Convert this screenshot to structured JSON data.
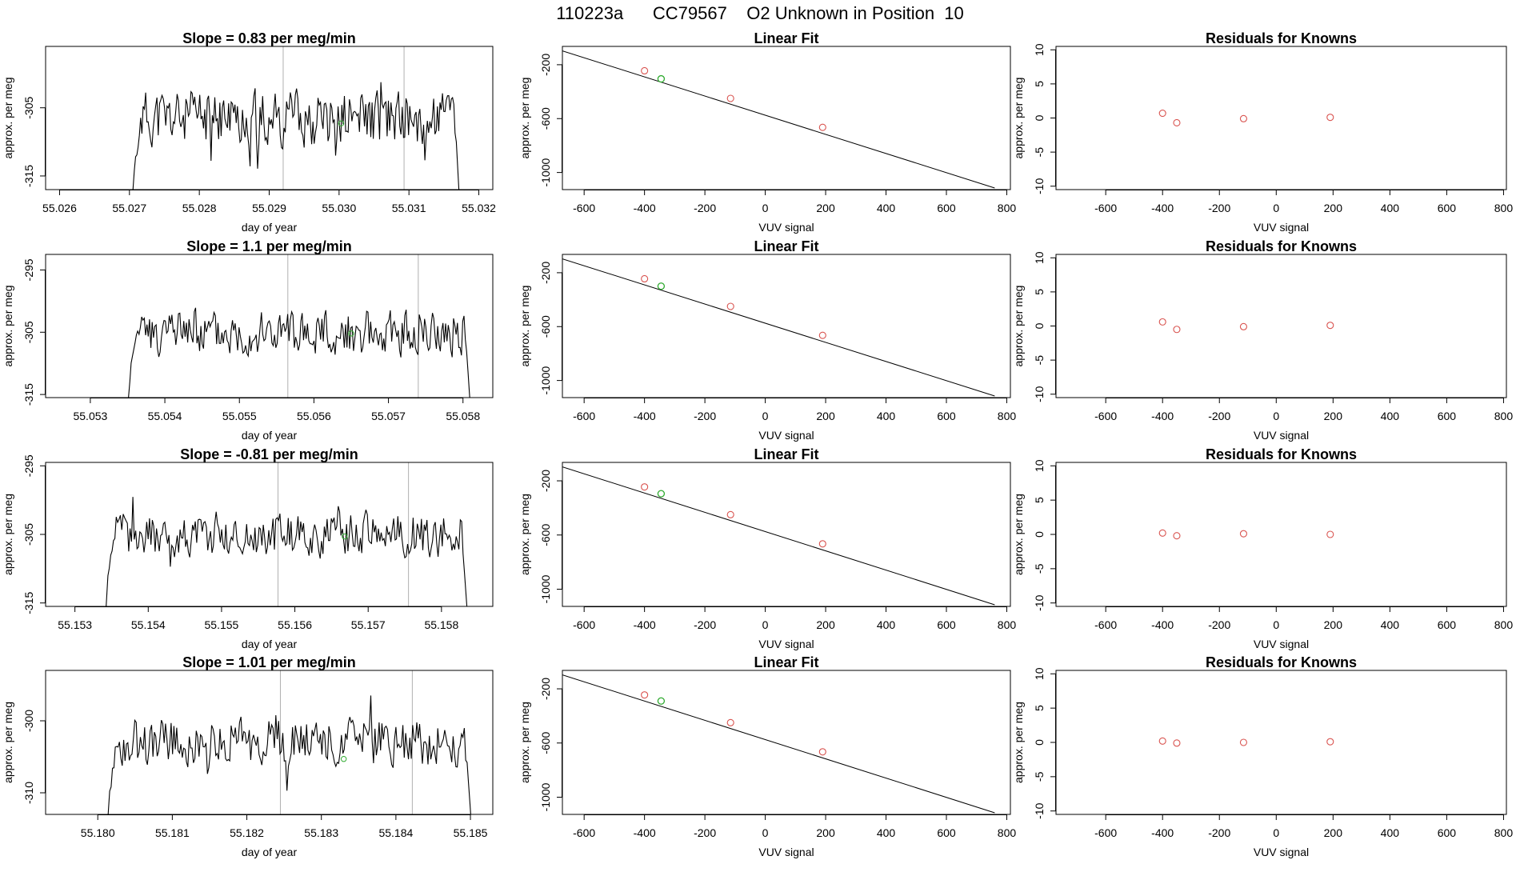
{
  "figure_title": "110223a      CC79567    O2 Unknown in Position  10",
  "chart_data": [
    {
      "type": "line",
      "row": 0,
      "col": 0,
      "title": "Slope =  0.83  per meg/min",
      "xlabel": "day of year",
      "ylabel": "approx. per meg",
      "xlim": [
        55.0258,
        55.0322
      ],
      "ylim": [
        -317,
        -296
      ],
      "xticks": [
        "55.026",
        "55.027",
        "55.028",
        "55.029",
        "55.030",
        "55.031",
        "55.032"
      ],
      "yticks": [
        "-305",
        "-315"
      ],
      "start": 55.02707,
      "end": 55.03175,
      "vlines": [
        55.0292,
        55.03093
      ],
      "center": -306.5,
      "amp": 5.0,
      "seed": 11,
      "marker": {
        "x": 55.03003,
        "y": -307.3
      }
    },
    {
      "type": "scatter",
      "row": 0,
      "col": 1,
      "title": "Linear Fit",
      "xlabel": "VUV signal",
      "ylabel": "approx. per meg",
      "xlim": [
        -672,
        812
      ],
      "ylim": [
        -1127,
        -64
      ],
      "xticks": [
        "-600",
        "-400",
        "-200",
        "0",
        "200",
        "400",
        "600",
        "800"
      ],
      "yticks": [
        "-200",
        "-600",
        "-1000"
      ],
      "fit_line": {
        "x": [
          -672,
          760
        ],
        "y": [
          -97,
          -1115
        ]
      },
      "knowns": {
        "x": [
          -400,
          -115,
          190
        ],
        "y": [
          -245,
          -450,
          -665
        ]
      },
      "unknown": {
        "x": [
          -345
        ],
        "y": [
          -305
        ]
      }
    },
    {
      "type": "scatter",
      "row": 0,
      "col": 2,
      "title": "Residuals for Knowns",
      "xlabel": "VUV signal",
      "ylabel": "approx. per meg",
      "xlim": [
        -775,
        810
      ],
      "ylim": [
        -10.5,
        10.5
      ],
      "xticks": [
        "-600",
        "-400",
        "-200",
        "0",
        "200",
        "400",
        "600",
        "800"
      ],
      "yticks": [
        "10",
        "5",
        "0",
        "-5",
        "-10"
      ],
      "knowns": {
        "x": [
          -400,
          -350,
          -115,
          190
        ],
        "y": [
          0.7,
          -0.7,
          -0.1,
          0.1
        ]
      }
    },
    {
      "type": "line",
      "row": 1,
      "col": 0,
      "title": "Slope =  1.1  per meg/min",
      "xlabel": "day of year",
      "ylabel": "approx. per meg",
      "xlim": [
        55.0524,
        55.0584
      ],
      "ylim": [
        -315.5,
        -292.5
      ],
      "xticks": [
        "55.053",
        "55.054",
        "55.055",
        "55.056",
        "55.057",
        "55.058"
      ],
      "yticks": [
        "-295",
        "-305",
        "-315"
      ],
      "start": 55.05353,
      "end": 55.05812,
      "vlines": [
        55.05565,
        55.0574
      ],
      "center": -305.0,
      "amp": 4.5,
      "seed": 23,
      "marker": {
        "x": 55.0565,
        "y": -305.2
      }
    },
    {
      "type": "scatter",
      "row": 1,
      "col": 1,
      "title": "Linear Fit",
      "xlabel": "VUV signal",
      "ylabel": "approx. per meg",
      "xlim": [
        -672,
        812
      ],
      "ylim": [
        -1127,
        -64
      ],
      "xticks": [
        "-600",
        "-400",
        "-200",
        "0",
        "200",
        "400",
        "600",
        "800"
      ],
      "yticks": [
        "-200",
        "-600",
        "-1000"
      ],
      "fit_line": {
        "x": [
          -672,
          760
        ],
        "y": [
          -97,
          -1115
        ]
      },
      "knowns": {
        "x": [
          -400,
          -115,
          190
        ],
        "y": [
          -245,
          -450,
          -665
        ]
      },
      "unknown": {
        "x": [
          -345
        ],
        "y": [
          -300
        ]
      }
    },
    {
      "type": "scatter",
      "row": 1,
      "col": 2,
      "title": "Residuals for Knowns",
      "xlabel": "VUV signal",
      "ylabel": "approx. per meg",
      "xlim": [
        -775,
        810
      ],
      "ylim": [
        -10.5,
        10.5
      ],
      "xticks": [
        "-600",
        "-400",
        "-200",
        "0",
        "200",
        "400",
        "600",
        "800"
      ],
      "yticks": [
        "10",
        "5",
        "0",
        "-5",
        "-10"
      ],
      "knowns": {
        "x": [
          -400,
          -350,
          -115,
          190
        ],
        "y": [
          0.6,
          -0.5,
          -0.1,
          0.1
        ]
      }
    },
    {
      "type": "line",
      "row": 2,
      "col": 0,
      "title": "Slope =  -0.81  per meg/min",
      "xlabel": "day of year",
      "ylabel": "approx. per meg",
      "xlim": [
        55.1526,
        55.1587
      ],
      "ylim": [
        -315.5,
        -294.5
      ],
      "xticks": [
        "55.153",
        "55.154",
        "55.155",
        "55.156",
        "55.157",
        "55.158"
      ],
      "yticks": [
        "-295",
        "-305",
        "-315"
      ],
      "start": 55.15345,
      "end": 55.15837,
      "vlines": [
        55.15577,
        55.15755
      ],
      "center": -305.0,
      "amp": 4.0,
      "seed": 37,
      "marker": {
        "x": 55.15668,
        "y": -305.3
      }
    },
    {
      "type": "scatter",
      "row": 2,
      "col": 1,
      "title": "Linear Fit",
      "xlabel": "VUV signal",
      "ylabel": "approx. per meg",
      "xlim": [
        -672,
        812
      ],
      "ylim": [
        -1127,
        -64
      ],
      "xticks": [
        "-600",
        "-400",
        "-200",
        "0",
        "200",
        "400",
        "600",
        "800"
      ],
      "yticks": [
        "-200",
        "-600",
        "-1000"
      ],
      "fit_line": {
        "x": [
          -672,
          760
        ],
        "y": [
          -97,
          -1115
        ]
      },
      "knowns": {
        "x": [
          -400,
          -115,
          190
        ],
        "y": [
          -245,
          -450,
          -665
        ]
      },
      "unknown": {
        "x": [
          -345
        ],
        "y": [
          -295
        ]
      }
    },
    {
      "type": "scatter",
      "row": 2,
      "col": 2,
      "title": "Residuals for Knowns",
      "xlabel": "VUV signal",
      "ylabel": "approx. per meg",
      "xlim": [
        -775,
        810
      ],
      "ylim": [
        -10.5,
        10.5
      ],
      "xticks": [
        "-600",
        "-400",
        "-200",
        "0",
        "200",
        "400",
        "600",
        "800"
      ],
      "yticks": [
        "10",
        "5",
        "0",
        "-5",
        "-10"
      ],
      "knowns": {
        "x": [
          -400,
          -350,
          -115,
          190
        ],
        "y": [
          0.2,
          -0.2,
          0.1,
          0.0
        ]
      }
    },
    {
      "type": "line",
      "row": 3,
      "col": 0,
      "title": "Slope =  1.01  per meg/min",
      "xlabel": "day of year",
      "ylabel": "approx. per meg",
      "xlim": [
        55.1793,
        55.1853
      ],
      "ylim": [
        -313,
        -293
      ],
      "xticks": [
        "55.180",
        "55.181",
        "55.182",
        "55.183",
        "55.184",
        "55.185"
      ],
      "yticks": [
        "-300",
        "-310"
      ],
      "start": 55.18016,
      "end": 55.18503,
      "vlines": [
        55.18245,
        55.18422
      ],
      "center": -303.0,
      "amp": 4.0,
      "seed": 53,
      "marker": {
        "x": 55.1833,
        "y": -305.3
      }
    },
    {
      "type": "scatter",
      "row": 3,
      "col": 1,
      "title": "Linear Fit",
      "xlabel": "VUV signal",
      "ylabel": "approx. per meg",
      "xlim": [
        -672,
        812
      ],
      "ylim": [
        -1127,
        -64
      ],
      "xticks": [
        "-600",
        "-400",
        "-200",
        "0",
        "200",
        "400",
        "600",
        "800"
      ],
      "yticks": [
        "-200",
        "-600",
        "-1000"
      ],
      "fit_line": {
        "x": [
          -672,
          760
        ],
        "y": [
          -97,
          -1115
        ]
      },
      "knowns": {
        "x": [
          -400,
          -115,
          190
        ],
        "y": [
          -245,
          -450,
          -665
        ]
      },
      "unknown": {
        "x": [
          -345
        ],
        "y": [
          -290
        ]
      }
    },
    {
      "type": "scatter",
      "row": 3,
      "col": 2,
      "title": "Residuals for Knowns",
      "xlabel": "VUV signal",
      "ylabel": "approx. per meg",
      "xlim": [
        -775,
        810
      ],
      "ylim": [
        -10.5,
        10.5
      ],
      "xticks": [
        "-600",
        "-400",
        "-200",
        "0",
        "200",
        "400",
        "600",
        "800"
      ],
      "yticks": [
        "10",
        "5",
        "0",
        "-5",
        "-10"
      ],
      "knowns": {
        "x": [
          -400,
          -350,
          -115,
          190
        ],
        "y": [
          0.2,
          -0.1,
          0.0,
          0.1
        ]
      }
    }
  ],
  "colors": {
    "known": "#d9534f",
    "unknown": "#2eaa2e",
    "line": "#000000",
    "divider": "#b0b0b0"
  }
}
